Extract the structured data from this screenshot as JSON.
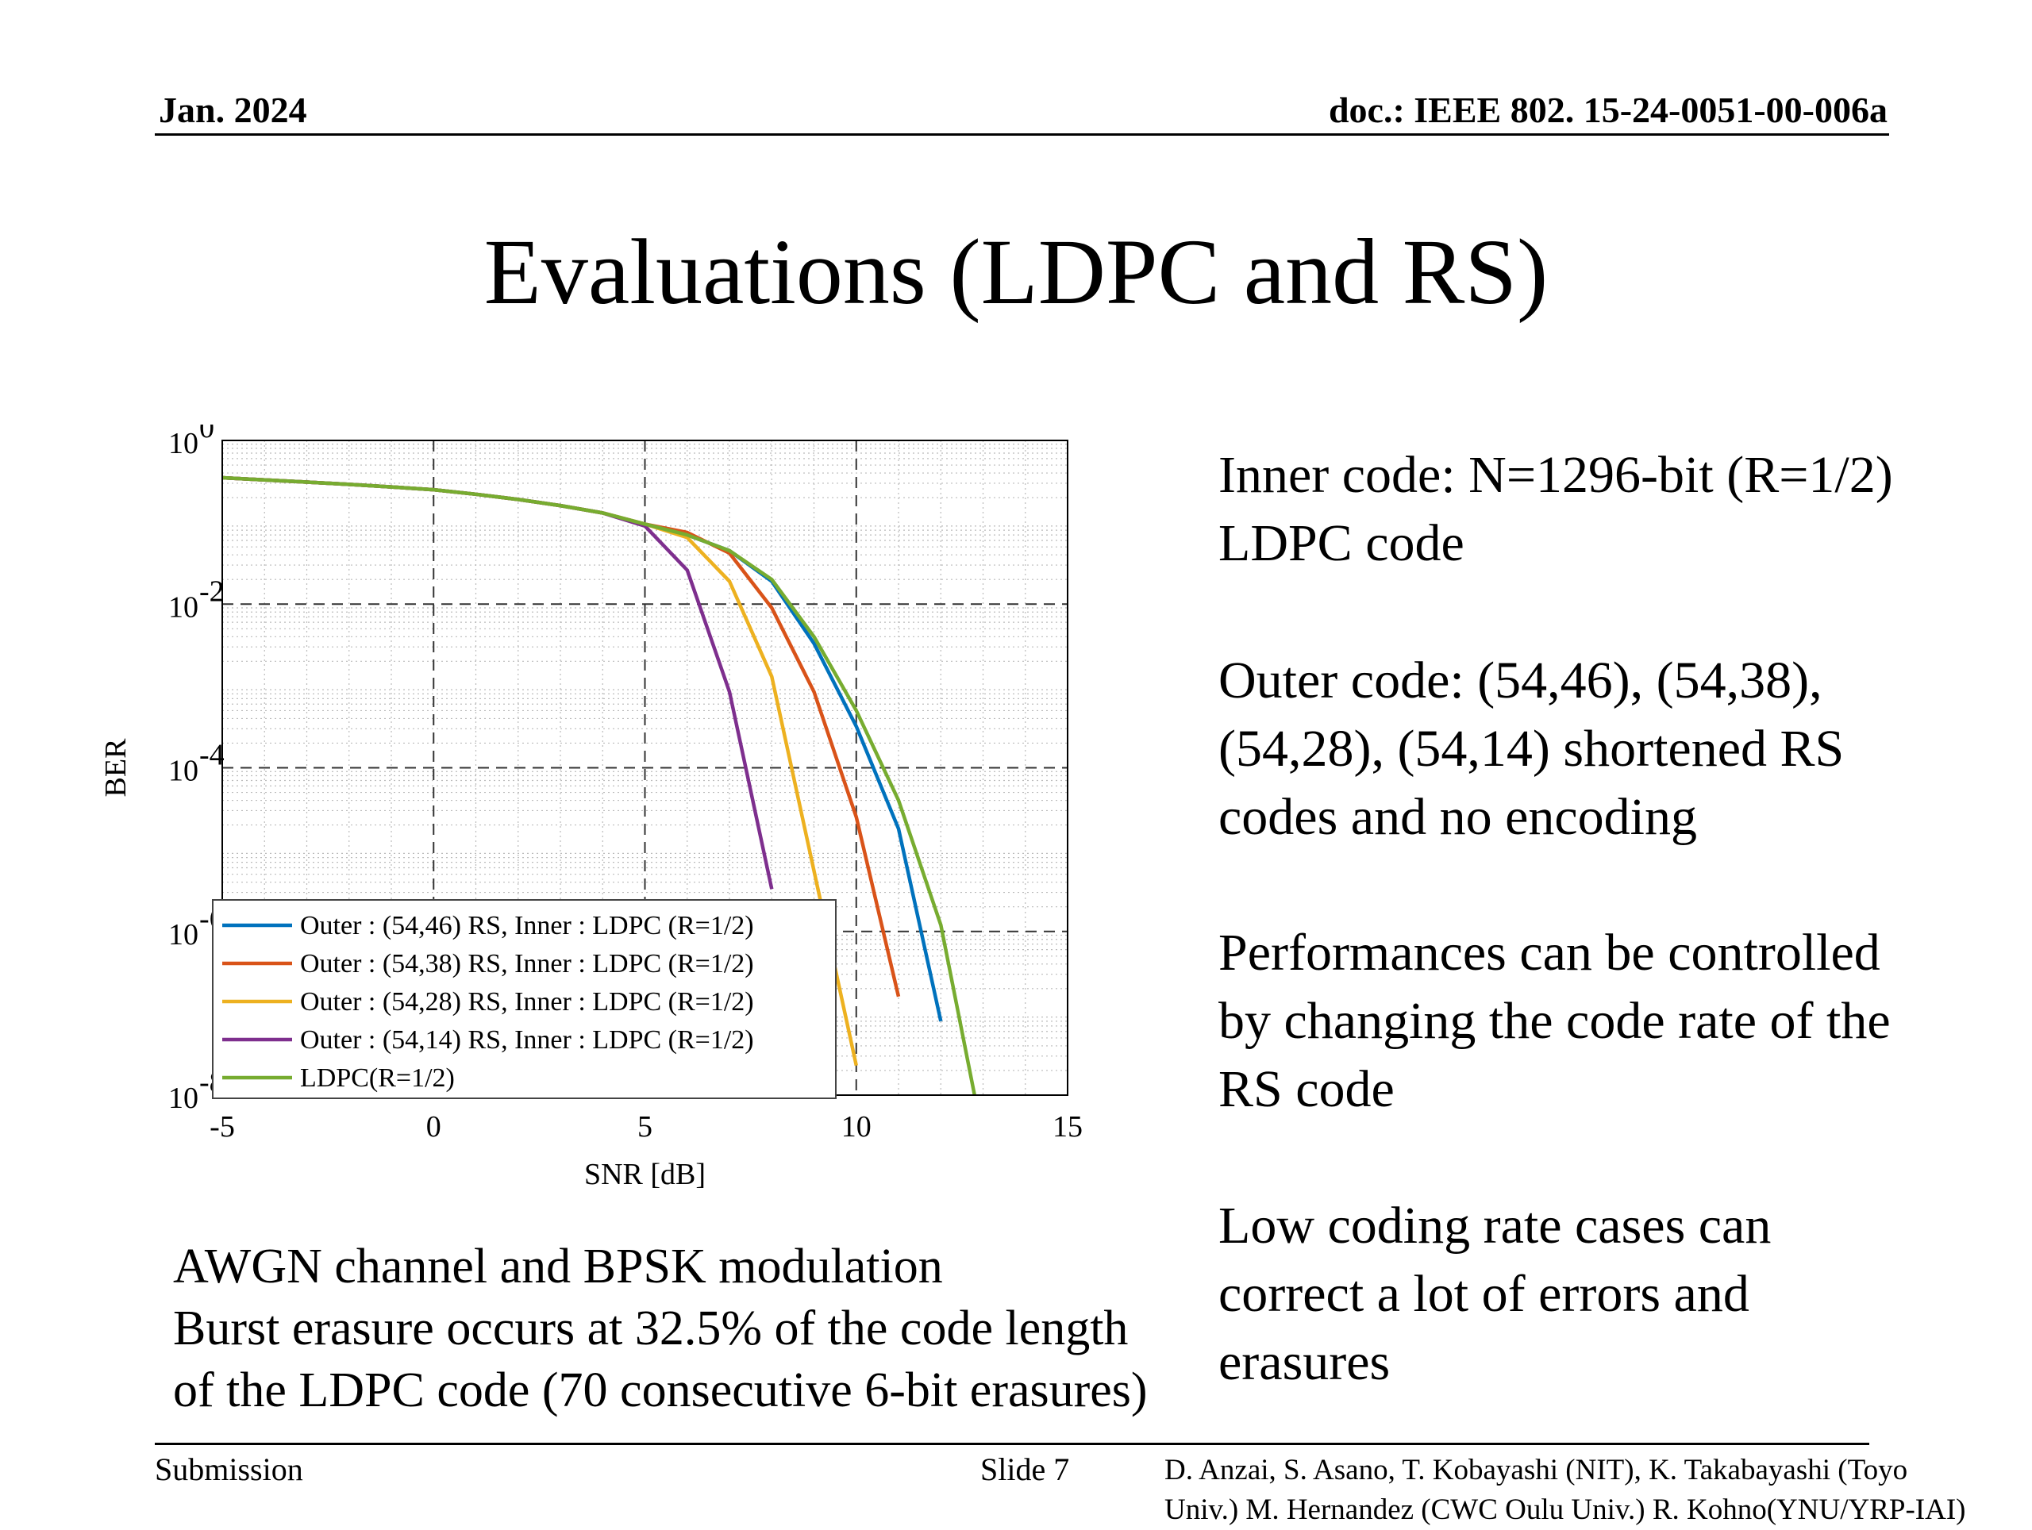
{
  "header": {
    "date": "Jan. 2024",
    "doc": "doc.: IEEE 802. 15-24-0051-00-006a"
  },
  "title": "Evaluations (LDPC and RS)",
  "bullets": [
    [
      "Inner code: N=1296-bit (R=1/2)",
      "LDPC code"
    ],
    [
      "Outer code: (54,46), (54,38),",
      "(54,28), (54,14) shortened RS",
      "codes and no encoding"
    ],
    [
      "Performances can be controlled",
      "by changing the code rate of the",
      "RS code"
    ],
    [
      "Low coding rate cases can",
      "correct a lot of errors and",
      "erasures"
    ]
  ],
  "notes": [
    "AWGN channel and BPSK modulation",
    "Burst erasure occurs at 32.5% of the code length",
    "of the LDPC code (70 consecutive 6-bit erasures)"
  ],
  "footer": {
    "submission": "Submission",
    "slide": "Slide 7",
    "authors_line1": "D. Anzai, S. Asano,  T. Kobayashi (NIT), K. Takabayashi (Toyo",
    "authors_line2": "Univ.) M. Hernandez (CWC Oulu Univ.) R. Kohno(YNU/YRP-IAI)"
  },
  "chart_data": {
    "type": "line",
    "xlabel": "SNR [dB]",
    "ylabel": "BER",
    "xlim": [
      -5,
      15
    ],
    "ylim": [
      1e-08,
      1
    ],
    "yscale": "log",
    "xticks": [
      "-5",
      "0",
      "5",
      "10",
      "15"
    ],
    "yticks": [
      {
        "base": "10",
        "exp": "0",
        "value": 1
      },
      {
        "base": "10",
        "exp": "-2",
        "value": 0.01
      },
      {
        "base": "10",
        "exp": "-4",
        "value": 0.0001
      },
      {
        "base": "10",
        "exp": "-6",
        "value": 1e-06
      },
      {
        "base": "10",
        "exp": "-8",
        "value": 1e-08
      }
    ],
    "grid": true,
    "legend_position": "bottom-left",
    "series": [
      {
        "name": "Outer : (54,46) RS, Inner : LDPC (R=1/2)",
        "color": "#0072BD",
        "x": [
          -5,
          -4,
          -3,
          -2,
          -1,
          0,
          1,
          2,
          3,
          4,
          5,
          6,
          7,
          8,
          9,
          10,
          11,
          12
        ],
        "y": [
          0.35,
          0.33,
          0.31,
          0.29,
          0.27,
          0.25,
          0.22,
          0.19,
          0.16,
          0.13,
          0.095,
          0.07,
          0.045,
          0.019,
          0.0033,
          0.00032,
          1.8e-05,
          8e-08
        ]
      },
      {
        "name": "Outer : (54,38) RS, Inner : LDPC (R=1/2)",
        "color": "#D95319",
        "x": [
          -5,
          -4,
          -3,
          -2,
          -1,
          0,
          1,
          2,
          3,
          4,
          5,
          6,
          7,
          8,
          9,
          10,
          11
        ],
        "y": [
          0.35,
          0.33,
          0.31,
          0.29,
          0.27,
          0.25,
          0.22,
          0.19,
          0.16,
          0.13,
          0.095,
          0.075,
          0.042,
          0.009,
          0.00085,
          2.5e-05,
          1.6e-07
        ]
      },
      {
        "name": "Outer : (54,28) RS, Inner : LDPC (R=1/2)",
        "color": "#EDB120",
        "x": [
          -5,
          -4,
          -3,
          -2,
          -1,
          0,
          1,
          2,
          3,
          4,
          5,
          6,
          7,
          8,
          9,
          10
        ],
        "y": [
          0.35,
          0.33,
          0.31,
          0.29,
          0.27,
          0.25,
          0.22,
          0.19,
          0.16,
          0.13,
          0.095,
          0.065,
          0.019,
          0.0013,
          5.5e-06,
          2.3e-08
        ]
      },
      {
        "name": "Outer : (54,14) RS, Inner : LDPC (R=1/2)",
        "color": "#7E2F8E",
        "x": [
          -5,
          -4,
          -3,
          -2,
          -1,
          0,
          1,
          2,
          3,
          4,
          5,
          6,
          7,
          8
        ],
        "y": [
          0.35,
          0.33,
          0.31,
          0.29,
          0.27,
          0.25,
          0.22,
          0.19,
          0.16,
          0.13,
          0.09,
          0.026,
          0.00085,
          3.3e-06
        ]
      },
      {
        "name": "LDPC(R=1/2)",
        "color": "#77AC30",
        "x": [
          -5,
          -4,
          -3,
          -2,
          -1,
          0,
          1,
          2,
          3,
          4,
          5,
          6,
          7,
          8,
          9,
          10,
          11,
          12,
          12.8
        ],
        "y": [
          0.35,
          0.33,
          0.31,
          0.29,
          0.27,
          0.25,
          0.22,
          0.19,
          0.16,
          0.13,
          0.095,
          0.07,
          0.045,
          0.02,
          0.004,
          0.0005,
          4e-05,
          1.2e-06,
          1e-08
        ]
      }
    ]
  }
}
